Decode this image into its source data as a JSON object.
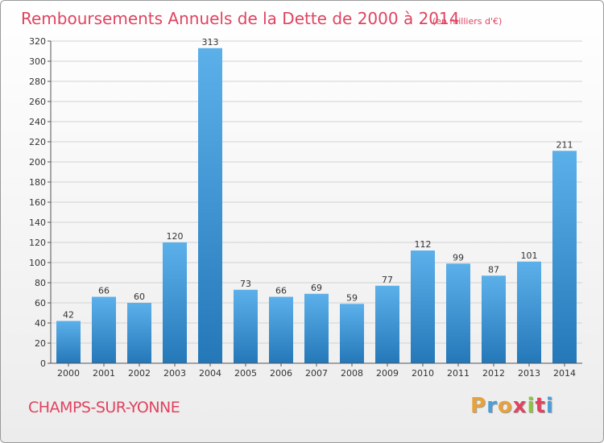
{
  "header": {
    "title": "Remboursements Annuels de la Dette de 2000 à 2014",
    "unit": "(en milliers d'€)"
  },
  "footer": {
    "town": "CHAMPS-SUR-YONNE",
    "logo_letters": [
      "P",
      "r",
      "o",
      "x",
      "i",
      "t",
      "i"
    ]
  },
  "colors": {
    "title": "#e0435f",
    "bar_top": "#5cb0ea",
    "bar_bottom": "#2478b8",
    "logo": [
      "#e8a23a",
      "#4a9fd8",
      "#e8a23a",
      "#e0435f",
      "#8cc63f",
      "#e0435f",
      "#4a9fd8"
    ]
  },
  "chart_data": {
    "type": "bar",
    "title": "Remboursements Annuels de la Dette de 2000 à 2014",
    "subtitle": "(en milliers d'€)",
    "categories": [
      "2000",
      "2001",
      "2002",
      "2003",
      "2004",
      "2005",
      "2006",
      "2007",
      "2008",
      "2009",
      "2010",
      "2011",
      "2012",
      "2013",
      "2014"
    ],
    "values": [
      42,
      66,
      60,
      120,
      313,
      73,
      66,
      69,
      59,
      77,
      112,
      99,
      87,
      101,
      211
    ],
    "ylim": [
      0,
      320
    ],
    "yticks": [
      0,
      20,
      40,
      60,
      80,
      100,
      120,
      140,
      160,
      180,
      200,
      220,
      240,
      260,
      280,
      300,
      320
    ],
    "grid": true,
    "legend": "none"
  }
}
